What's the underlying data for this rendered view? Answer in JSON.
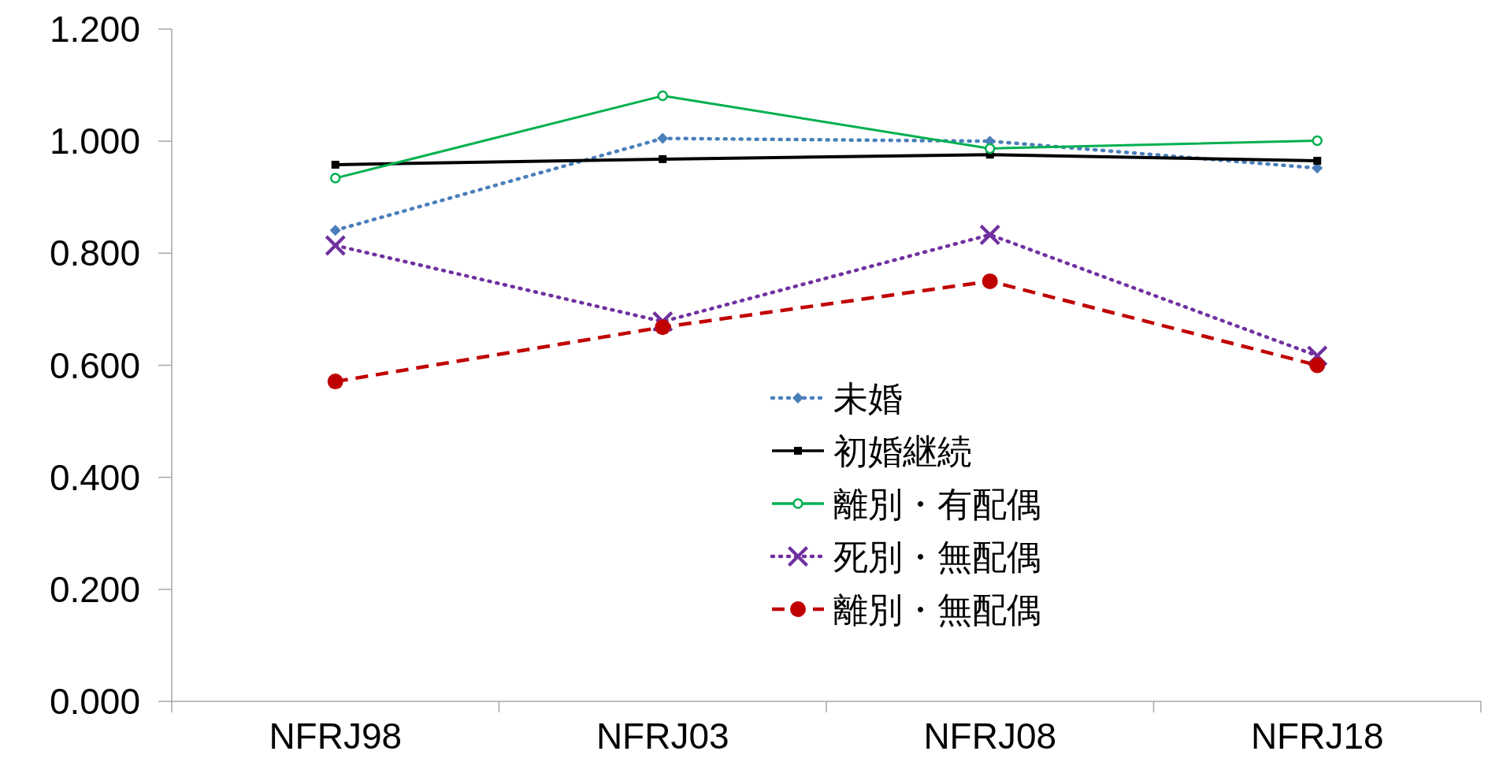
{
  "chart_data": {
    "type": "line",
    "categories": [
      "NFRJ98",
      "NFRJ03",
      "NFRJ08",
      "NFRJ18"
    ],
    "ylim": [
      0,
      1.2
    ],
    "yticks": [
      {
        "value": 0,
        "label": "0.000"
      },
      {
        "value": 0.2,
        "label": "0.200"
      },
      {
        "value": 0.4,
        "label": "0.400"
      },
      {
        "value": 0.6,
        "label": "0.600"
      },
      {
        "value": 0.8,
        "label": "0.800"
      },
      {
        "value": 1.0,
        "label": "1.000"
      },
      {
        "value": 1.2,
        "label": "1.200"
      }
    ],
    "grid": false,
    "legend": "bottom",
    "series": [
      {
        "name": "未婚",
        "color": "#4a7ebb",
        "marker": "diamond",
        "line_style": "dotted",
        "values": [
          0.841,
          1.005,
          1.0,
          0.952
        ]
      },
      {
        "name": "初婚継続",
        "color": "#000000",
        "marker": "square",
        "line_style": "solid",
        "values": [
          0.958,
          0.968,
          0.976,
          0.965
        ]
      },
      {
        "name": "離別・有配偶",
        "color": "#00b050",
        "marker": "circle",
        "line_style": "solid",
        "values": [
          0.934,
          1.081,
          0.987,
          1.001
        ]
      },
      {
        "name": "死別・無配偶",
        "color": "#7030a0",
        "marker": "cross",
        "line_style": "dotted",
        "values": [
          0.814,
          0.678,
          0.833,
          0.617
        ]
      },
      {
        "name": "離別・無配偶",
        "color": "#c00000",
        "marker": "circle",
        "line_style": "dashed",
        "values": [
          0.571,
          0.668,
          0.75,
          0.6
        ]
      }
    ]
  }
}
